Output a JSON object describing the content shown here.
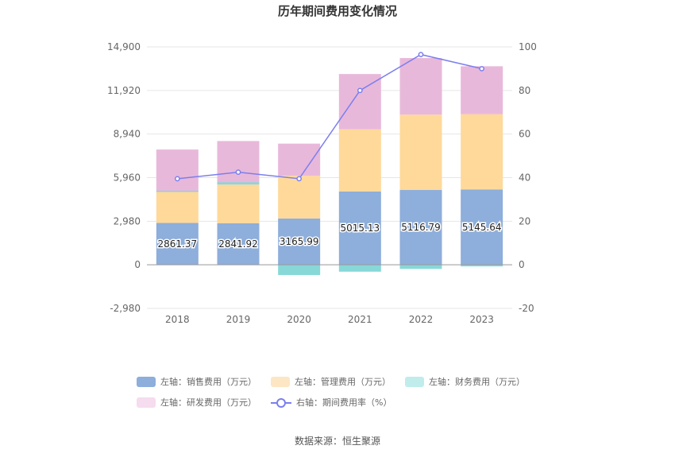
{
  "chart_data": {
    "type": "bar",
    "title": "历年期间费用变化情况",
    "categories": [
      "2018",
      "2019",
      "2020",
      "2021",
      "2022",
      "2023"
    ],
    "left_axis": {
      "min": -2980,
      "max": 14900,
      "ticks": [
        "-2,980",
        "0",
        "2,980",
        "5,960",
        "8,940",
        "11,920",
        "14,900"
      ],
      "tick_values": [
        -2980,
        0,
        2980,
        5960,
        8940,
        11920,
        14900
      ]
    },
    "right_axis": {
      "min": -20,
      "max": 100,
      "ticks": [
        "-20",
        "0",
        "20",
        "40",
        "60",
        "80",
        "100"
      ],
      "tick_values": [
        -20,
        0,
        20,
        40,
        60,
        80,
        100
      ]
    },
    "series": [
      {
        "name": "左轴：销售费用（万元）",
        "type": "bar",
        "color": "#8eaedb",
        "values": [
          2861.37,
          2841.92,
          3165.99,
          5015.13,
          5116.79,
          5145.64
        ],
        "labels": [
          "2861.37",
          "2841.92",
          "3165.99",
          "5015.13",
          "5116.79",
          "5145.64"
        ]
      },
      {
        "name": "左轴：管理费用（万元）",
        "type": "bar",
        "color": "#ffd99a",
        "legend_color": "#fde6c4",
        "values": [
          2120,
          2650,
          2920,
          4250,
          5150,
          5150
        ]
      },
      {
        "name": "左轴：财务费用（万元）",
        "type": "bar",
        "color": "#88d8d8",
        "legend_color": "#c0ecec",
        "values": [
          80,
          150,
          -700,
          -470,
          -280,
          -110
        ]
      },
      {
        "name": "左轴：研发费用（万元）",
        "type": "bar",
        "color": "#e8b8da",
        "legend_color": "#f5dcee",
        "values": [
          2900,
          2970,
          2200,
          3780,
          3870,
          3280
        ]
      },
      {
        "name": "右轴：期间费用率（%）",
        "type": "line",
        "color": "#7b7fee",
        "values": [
          39.5,
          42.5,
          39.5,
          80,
          96.5,
          90
        ]
      }
    ]
  },
  "source": "数据来源：恒生聚源"
}
